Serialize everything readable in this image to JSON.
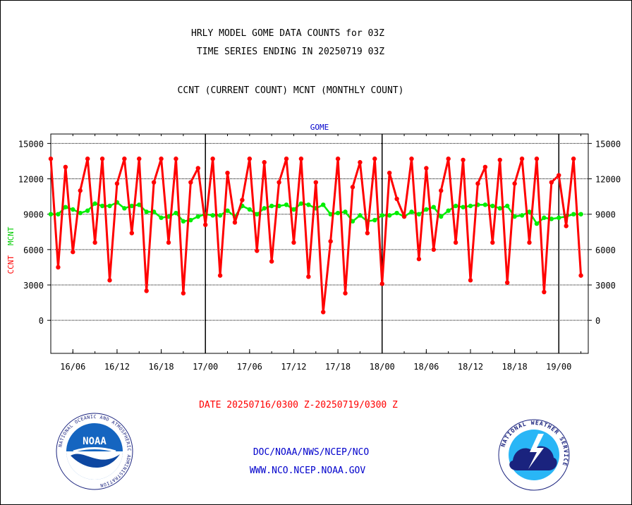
{
  "header": {
    "title_line1": "HRLY MODEL GOME DATA COUNTS for 03Z",
    "title_line2": "TIME SERIES ENDING IN 20250719 03Z",
    "subtitle": "CCNT (CURRENT COUNT) MCNT (MONTHLY COUNT)"
  },
  "footer": {
    "date_range": "DATE 20250716/0300 Z-20250719/0300 Z",
    "org_path": "DOC/NOAA/NWS/NCEP/NCO",
    "website": "WWW.NCO.NCEP.NOAA.GOV"
  },
  "logos": {
    "noaa": {
      "text": "NOAA",
      "ring_text": "NATIONAL OCEANIC AND ATMOSPHERIC ADMINISTRATION"
    },
    "nws": {
      "ring_text": "NATIONAL WEATHER SERVICE"
    }
  },
  "colors": {
    "ccnt": "#ff0000",
    "mcnt": "#00ee00",
    "title": "#000000",
    "footer": "#0000cc",
    "date": "#ff0000"
  },
  "chart_data": {
    "type": "line",
    "title": "GOME",
    "ylabel_series": [
      "CCNT",
      "MCNT"
    ],
    "ylim": [
      -2800,
      15800
    ],
    "yticks": [
      0,
      3000,
      6000,
      9000,
      12000,
      15000
    ],
    "grid": true,
    "x_range_hours": [
      0,
      73
    ],
    "x_ticks": [
      {
        "hour": 3,
        "label": "16/06"
      },
      {
        "hour": 9,
        "label": "16/12"
      },
      {
        "hour": 15,
        "label": "16/18"
      },
      {
        "hour": 21,
        "label": "17/00"
      },
      {
        "hour": 27,
        "label": "17/06"
      },
      {
        "hour": 33,
        "label": "17/12"
      },
      {
        "hour": 39,
        "label": "17/18"
      },
      {
        "hour": 45,
        "label": "18/00"
      },
      {
        "hour": 51,
        "label": "18/06"
      },
      {
        "hour": 57,
        "label": "18/12"
      },
      {
        "hour": 63,
        "label": "18/18"
      },
      {
        "hour": 69,
        "label": "19/00"
      }
    ],
    "day_boundaries": [
      21,
      45,
      69
    ],
    "series": [
      {
        "name": "CCNT",
        "values": [
          13700,
          4500,
          13000,
          5800,
          11000,
          13700,
          6600,
          13700,
          3400,
          11600,
          13700,
          7400,
          13700,
          2500,
          11700,
          13700,
          6600,
          13700,
          2300,
          11700,
          12900,
          8100,
          13700,
          3800,
          12500,
          8300,
          10200,
          13700,
          5900,
          13400,
          5000,
          11700,
          13700,
          6600,
          13700,
          3700,
          11700,
          700,
          6700,
          13700,
          2300,
          11300,
          13400,
          7400,
          13700,
          3100,
          12500,
          10300,
          8800,
          13700,
          5200,
          12900,
          6000,
          11000,
          13700,
          6600,
          13600,
          3400,
          11600,
          13000,
          6600,
          13600,
          3200,
          11600,
          13700,
          6600,
          13700,
          2400,
          11700,
          12300,
          8000,
          13700,
          3800
        ]
      },
      {
        "name": "MCNT",
        "values": [
          9000,
          9000,
          9600,
          9400,
          9100,
          9300,
          9900,
          9700,
          9700,
          10000,
          9500,
          9700,
          9800,
          9200,
          9200,
          8700,
          8800,
          9100,
          8400,
          8500,
          8800,
          9000,
          8900,
          8900,
          9300,
          8800,
          9700,
          9400,
          9000,
          9500,
          9700,
          9700,
          9800,
          9400,
          9900,
          9800,
          9500,
          9800,
          9000,
          9100,
          9200,
          8400,
          8900,
          8400,
          8500,
          8900,
          8900,
          9100,
          8800,
          9200,
          9000,
          9400,
          9600,
          8800,
          9300,
          9700,
          9600,
          9700,
          9800,
          9800,
          9700,
          9500,
          9700,
          8800,
          8900,
          9200,
          8200,
          8700,
          8600,
          8700,
          8800,
          9000,
          9000
        ]
      }
    ]
  }
}
